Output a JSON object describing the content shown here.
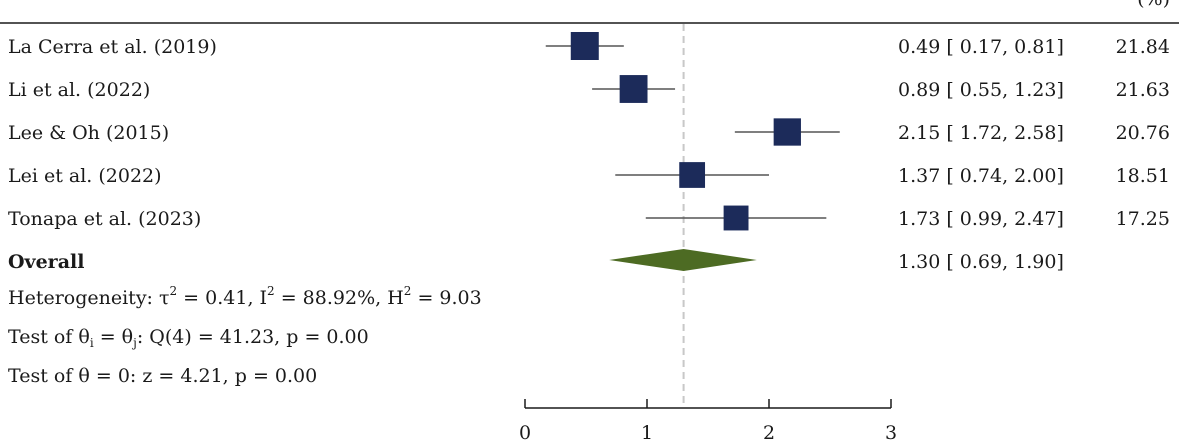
{
  "chart_data": {
    "type": "forest",
    "header": {
      "left": "",
      "right_estimate": "",
      "right_weight": "(%)"
    },
    "xlim": [
      0,
      3
    ],
    "xticks": [
      "0",
      "1",
      "2",
      "3"
    ],
    "reference_line": 1.3,
    "studies": [
      {
        "name": "La Cerra et al. (2019)",
        "estimate": 0.49,
        "lower": 0.17,
        "upper": 0.81,
        "ci_text": "0.49 [ 0.17,  0.81]",
        "weight": 21.84,
        "weight_text": "21.84"
      },
      {
        "name": "Li et al. (2022)",
        "estimate": 0.89,
        "lower": 0.55,
        "upper": 1.23,
        "ci_text": "0.89 [ 0.55,  1.23]",
        "weight": 21.63,
        "weight_text": "21.63"
      },
      {
        "name": "Lee & Oh (2015)",
        "estimate": 2.15,
        "lower": 1.72,
        "upper": 2.58,
        "ci_text": "2.15 [ 1.72,  2.58]",
        "weight": 20.76,
        "weight_text": "20.76"
      },
      {
        "name": "Lei et al. (2022)",
        "estimate": 1.37,
        "lower": 0.74,
        "upper": 2.0,
        "ci_text": "1.37 [ 0.74,  2.00]",
        "weight": 18.51,
        "weight_text": "18.51"
      },
      {
        "name": "Tonapa et al. (2023)",
        "estimate": 1.73,
        "lower": 0.99,
        "upper": 2.47,
        "ci_text": "1.73 [ 0.99,  2.47]",
        "weight": 17.25,
        "weight_text": "17.25"
      }
    ],
    "overall": {
      "name": "Overall",
      "estimate": 1.3,
      "lower": 0.69,
      "upper": 1.9,
      "ci_text": "1.30 [ 0.69,  1.90]"
    },
    "stats": {
      "heterogeneity": {
        "prefix": "Heterogeneity: τ",
        "sup1": "2",
        "mid1": " = 0.41, I",
        "sup2": "2",
        "mid2": " = 88.92%, H",
        "sup3": "2",
        "end": " = 9.03"
      },
      "test_theta_i": {
        "prefix": "Test of θ",
        "sub1": "i",
        "mid": " = θ",
        "sub2": "j",
        "end": ": Q(4) = 41.23, p = 0.00"
      },
      "test_theta_zero": "Test of θ = 0: z = 4.21, p = 0.00"
    },
    "colors": {
      "square": "#1c2b5a",
      "diamond": "#4d6b23",
      "ci_line": "#555555",
      "ref_line": "#c8c8c8",
      "axis": "#1a1a1a"
    }
  }
}
